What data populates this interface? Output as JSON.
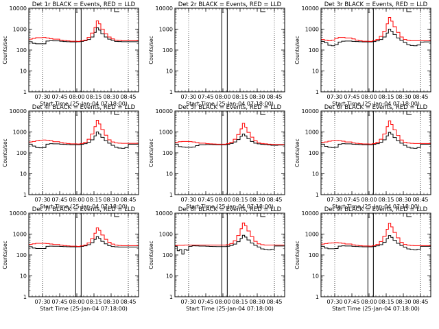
{
  "figure": {
    "y_tick_labels": [
      "1",
      "10",
      "100",
      "1000",
      "10000"
    ],
    "x_tick_labels": [
      "07:30",
      "07:45",
      "08:00",
      "08:15",
      "08:30",
      "08:45"
    ],
    "ylabel": "Counts/sec",
    "xlabel": "Start Time (25-Jan-04 07:18:00)",
    "series_colors": {
      "events": "#000000",
      "lld": "#ff0000"
    }
  },
  "chart_data": [
    {
      "type": "line",
      "title": "Det 1r BLACK = Events, RED = LLD",
      "xlabel": "Start Time (25-Jan-04 07:18:00)",
      "ylabel": "Counts/sec",
      "yscale": "log",
      "ylim": [
        1,
        10000
      ],
      "xlim": [
        "07:18",
        "08:54"
      ],
      "x": [
        "07:18",
        "07:21",
        "07:24",
        "07:30",
        "07:33",
        "07:36",
        "07:39",
        "07:45",
        "07:48",
        "07:51",
        "07:54",
        "08:00",
        "08:03",
        "08:06",
        "08:09",
        "08:12",
        "08:15",
        "08:17",
        "08:19",
        "08:21",
        "08:24",
        "08:27",
        "08:30",
        "08:33",
        "08:36",
        "08:39",
        "08:42",
        "08:45",
        "08:48",
        "08:51",
        "08:54"
      ],
      "series": [
        {
          "name": "BLACK = Events",
          "values": [
            250,
            210,
            200,
            200,
            270,
            280,
            275,
            265,
            255,
            250,
            245,
            250,
            260,
            280,
            320,
            420,
            700,
            1150,
            900,
            600,
            420,
            330,
            290,
            260,
            255,
            250,
            250,
            250,
            250,
            250,
            250
          ]
        },
        {
          "name": "RED = LLD",
          "values": [
            330,
            360,
            390,
            400,
            380,
            350,
            330,
            300,
            285,
            275,
            265,
            260,
            275,
            300,
            400,
            650,
            1200,
            2500,
            1800,
            1000,
            600,
            420,
            340,
            300,
            290,
            280,
            280,
            280,
            280,
            280,
            280
          ]
        }
      ]
    },
    {
      "type": "line",
      "title": "Det 2r BLACK = Events, RED = LLD",
      "xlabel": "Start Time (25-Jan-04 07:18:00)",
      "ylabel": "Counts/sec",
      "yscale": "log",
      "ylim": [
        1,
        10000
      ],
      "xlim": [
        "07:18",
        "08:54"
      ],
      "x": [],
      "series": []
    },
    {
      "type": "line",
      "title": "Det 3r BLACK = Events, RED = LLD",
      "xlabel": "Start Time (25-Jan-04 07:18:00)",
      "ylabel": "Counts/sec",
      "yscale": "log",
      "ylim": [
        1,
        10000
      ],
      "xlim": [
        "07:18",
        "08:54"
      ],
      "x": [
        "07:18",
        "07:21",
        "07:24",
        "07:27",
        "07:30",
        "07:33",
        "07:36",
        "07:39",
        "07:45",
        "07:48",
        "07:51",
        "07:54",
        "08:00",
        "08:03",
        "08:06",
        "08:09",
        "08:12",
        "08:15",
        "08:17",
        "08:19",
        "08:21",
        "08:24",
        "08:27",
        "08:30",
        "08:33",
        "08:36",
        "08:39",
        "08:42",
        "08:45",
        "08:48",
        "08:51",
        "08:54"
      ],
      "series": [
        {
          "name": "BLACK = Events",
          "values": [
            260,
            220,
            170,
            160,
            180,
            240,
            265,
            270,
            260,
            255,
            250,
            245,
            245,
            255,
            275,
            320,
            420,
            650,
            1000,
            800,
            550,
            380,
            290,
            230,
            180,
            165,
            160,
            175,
            240,
            245,
            245,
            245
          ]
        },
        {
          "name": "RED = LLD",
          "values": [
            320,
            300,
            280,
            300,
            360,
            400,
            400,
            380,
            340,
            300,
            280,
            265,
            260,
            280,
            320,
            450,
            800,
            1800,
            3600,
            2400,
            1300,
            700,
            420,
            320,
            290,
            280,
            280,
            280,
            280,
            280,
            280,
            280
          ]
        }
      ]
    },
    {
      "type": "line",
      "title": "Det 4r BLACK = Events, RED = LLD",
      "xlabel": "Start Time (25-Jan-04 07:18:00)",
      "ylabel": "Counts/sec",
      "yscale": "log",
      "ylim": [
        1,
        10000
      ],
      "xlim": [
        "07:18",
        "08:54"
      ],
      "x": [
        "07:18",
        "07:21",
        "07:24",
        "07:27",
        "07:30",
        "07:33",
        "07:36",
        "07:39",
        "07:45",
        "07:48",
        "07:51",
        "07:54",
        "08:00",
        "08:03",
        "08:06",
        "08:09",
        "08:12",
        "08:15",
        "08:17",
        "08:19",
        "08:21",
        "08:24",
        "08:27",
        "08:30",
        "08:33",
        "08:36",
        "08:39",
        "08:42",
        "08:45",
        "08:48",
        "08:51",
        "08:54"
      ],
      "series": [
        {
          "name": "BLACK = Events",
          "values": [
            260,
            210,
            180,
            175,
            180,
            260,
            275,
            270,
            260,
            255,
            250,
            245,
            245,
            255,
            275,
            320,
            420,
            650,
            1000,
            800,
            550,
            380,
            290,
            230,
            185,
            170,
            165,
            180,
            260,
            260,
            260,
            260
          ]
        },
        {
          "name": "RED = LLD",
          "values": [
            330,
            350,
            380,
            400,
            410,
            400,
            380,
            340,
            310,
            290,
            280,
            270,
            265,
            280,
            320,
            450,
            800,
            1800,
            3600,
            2400,
            1300,
            700,
            420,
            330,
            300,
            290,
            285,
            285,
            285,
            285,
            285,
            285
          ]
        }
      ]
    },
    {
      "type": "line",
      "title": "Det 5r BLACK = Events, RED = LLD",
      "xlabel": "Start Time (25-Jan-04 07:18:00)",
      "ylabel": "Counts/sec",
      "yscale": "log",
      "ylim": [
        1,
        10000
      ],
      "xlim": [
        "07:18",
        "08:54"
      ],
      "x": [
        "07:18",
        "07:21",
        "07:24",
        "07:27",
        "07:30",
        "07:33",
        "07:36",
        "07:39",
        "07:45",
        "07:48",
        "07:51",
        "07:54",
        "08:00",
        "08:03",
        "08:06",
        "08:09",
        "08:12",
        "08:15",
        "08:17",
        "08:19",
        "08:21",
        "08:24",
        "08:27",
        "08:30",
        "08:33",
        "08:36",
        "08:39",
        "08:42",
        "08:45",
        "08:48",
        "08:51",
        "08:54"
      ],
      "series": [
        {
          "name": "BLACK = Events",
          "values": [
            260,
            200,
            190,
            185,
            185,
            190,
            220,
            245,
            250,
            250,
            248,
            245,
            245,
            255,
            280,
            330,
            430,
            620,
            800,
            650,
            480,
            350,
            290,
            270,
            255,
            250,
            240,
            230,
            230,
            235,
            235,
            235
          ]
        },
        {
          "name": "RED = LLD",
          "values": [
            320,
            340,
            350,
            350,
            345,
            330,
            310,
            290,
            275,
            270,
            265,
            260,
            260,
            275,
            320,
            450,
            750,
            1400,
            2600,
            1700,
            950,
            560,
            380,
            300,
            280,
            270,
            260,
            255,
            250,
            250,
            250,
            250
          ]
        }
      ]
    },
    {
      "type": "line",
      "title": "Det 6r BLACK = Events, RED = LLD",
      "xlabel": "Start Time (25-Jan-04 07:18:00)",
      "ylabel": "Counts/sec",
      "yscale": "log",
      "ylim": [
        1,
        10000
      ],
      "xlim": [
        "07:18",
        "08:54"
      ],
      "x": [
        "07:18",
        "07:21",
        "07:24",
        "07:27",
        "07:30",
        "07:33",
        "07:36",
        "07:39",
        "07:45",
        "07:48",
        "07:51",
        "07:54",
        "08:00",
        "08:03",
        "08:06",
        "08:09",
        "08:12",
        "08:15",
        "08:17",
        "08:19",
        "08:21",
        "08:24",
        "08:27",
        "08:30",
        "08:33",
        "08:36",
        "08:39",
        "08:42",
        "08:45",
        "08:48",
        "08:51",
        "08:54"
      ],
      "series": [
        {
          "name": "BLACK = Events",
          "values": [
            260,
            205,
            185,
            180,
            185,
            260,
            275,
            270,
            260,
            255,
            250,
            245,
            245,
            255,
            275,
            320,
            420,
            650,
            950,
            780,
            540,
            380,
            290,
            230,
            185,
            170,
            165,
            180,
            260,
            260,
            260,
            260
          ]
        },
        {
          "name": "RED = LLD",
          "values": [
            320,
            330,
            360,
            380,
            390,
            380,
            360,
            330,
            300,
            285,
            275,
            268,
            262,
            278,
            320,
            450,
            800,
            1800,
            3400,
            2300,
            1250,
            680,
            410,
            320,
            295,
            285,
            280,
            280,
            280,
            280,
            280,
            280
          ]
        }
      ]
    },
    {
      "type": "line",
      "title": "Det 7r BLACK = Events, RED = LLD",
      "xlabel": "Start Time (25-Jan-04 07:18:00)",
      "ylabel": "Counts/sec",
      "yscale": "log",
      "ylim": [
        1,
        10000
      ],
      "xlim": [
        "07:18",
        "08:54"
      ],
      "x": [
        "07:18",
        "07:21",
        "07:24",
        "07:30",
        "07:33",
        "07:36",
        "07:39",
        "07:45",
        "07:48",
        "07:51",
        "07:54",
        "08:00",
        "08:03",
        "08:06",
        "08:09",
        "08:12",
        "08:15",
        "08:17",
        "08:19",
        "08:21",
        "08:24",
        "08:27",
        "08:30",
        "08:33",
        "08:36",
        "08:39",
        "08:42",
        "08:45",
        "08:48",
        "08:51",
        "08:54"
      ],
      "series": [
        {
          "name": "BLACK = Events",
          "values": [
            250,
            215,
            205,
            205,
            260,
            265,
            262,
            258,
            252,
            248,
            245,
            248,
            258,
            275,
            310,
            390,
            560,
            750,
            620,
            450,
            340,
            280,
            255,
            245,
            240,
            240,
            240,
            240,
            240,
            240,
            240
          ]
        },
        {
          "name": "RED = LLD",
          "values": [
            320,
            340,
            360,
            360,
            350,
            335,
            315,
            295,
            282,
            272,
            264,
            258,
            272,
            300,
            380,
            600,
            1100,
            2000,
            1500,
            900,
            560,
            400,
            330,
            300,
            285,
            280,
            280,
            280,
            280,
            280,
            280
          ]
        }
      ]
    },
    {
      "type": "line",
      "title": "Det 8r BLACK = Events, RED = LLD",
      "xlabel": "Start Time (25-Jan-04 07:18:00)",
      "ylabel": "Counts/sec",
      "yscale": "log",
      "ylim": [
        1,
        10000
      ],
      "xlim": [
        "07:18",
        "08:54"
      ],
      "x": [
        "07:18",
        "07:20",
        "07:22",
        "07:24",
        "07:26",
        "07:28",
        "07:30",
        "07:33",
        "07:36",
        "07:39",
        "07:45",
        "07:48",
        "07:51",
        "07:54",
        "08:00",
        "08:03",
        "08:06",
        "08:09",
        "08:12",
        "08:15",
        "08:17",
        "08:19",
        "08:21",
        "08:24",
        "08:27",
        "08:30",
        "08:33",
        "08:36",
        "08:39",
        "08:42",
        "08:45",
        "08:48",
        "08:51",
        "08:54"
      ],
      "series": [
        {
          "name": "BLACK = Events",
          "values": [
            260,
            160,
            180,
            110,
            180,
            170,
            260,
            275,
            272,
            268,
            262,
            258,
            255,
            252,
            252,
            262,
            285,
            330,
            430,
            620,
            880,
            720,
            520,
            370,
            290,
            240,
            195,
            180,
            175,
            185,
            270,
            270,
            270,
            270
          ]
        },
        {
          "name": "RED = LLD",
          "values": [
            280,
            290,
            290,
            290,
            300,
            300,
            300,
            300,
            300,
            300,
            300,
            300,
            300,
            300,
            300,
            310,
            350,
            480,
            850,
            1800,
            3400,
            2500,
            1400,
            750,
            450,
            340,
            310,
            300,
            300,
            300,
            300,
            300,
            300,
            300
          ]
        }
      ]
    },
    {
      "type": "line",
      "title": "Det 9r BLACK = Events, RED = LLD",
      "xlabel": "Start Time (25-Jan-04 07:18:00)",
      "ylabel": "Counts/sec",
      "yscale": "log",
      "ylim": [
        1,
        10000
      ],
      "xlim": [
        "07:18",
        "08:54"
      ],
      "x": [
        "07:18",
        "07:21",
        "07:24",
        "07:27",
        "07:30",
        "07:33",
        "07:36",
        "07:39",
        "07:45",
        "07:48",
        "07:51",
        "07:54",
        "08:00",
        "08:03",
        "08:06",
        "08:09",
        "08:12",
        "08:15",
        "08:17",
        "08:19",
        "08:21",
        "08:24",
        "08:27",
        "08:30",
        "08:33",
        "08:36",
        "08:39",
        "08:42",
        "08:45",
        "08:48",
        "08:51",
        "08:54"
      ],
      "series": [
        {
          "name": "BLACK = Events",
          "values": [
            260,
            215,
            200,
            200,
            205,
            265,
            275,
            270,
            260,
            255,
            250,
            245,
            245,
            255,
            275,
            310,
            400,
            600,
            850,
            700,
            500,
            360,
            285,
            235,
            195,
            180,
            175,
            185,
            260,
            260,
            260,
            260
          ]
        },
        {
          "name": "RED = LLD",
          "values": [
            330,
            350,
            370,
            380,
            390,
            380,
            360,
            335,
            305,
            290,
            280,
            270,
            265,
            280,
            320,
            440,
            780,
            1700,
            3300,
            2200,
            1200,
            660,
            400,
            320,
            295,
            285,
            280,
            280,
            280,
            280,
            280,
            280
          ]
        }
      ]
    }
  ]
}
